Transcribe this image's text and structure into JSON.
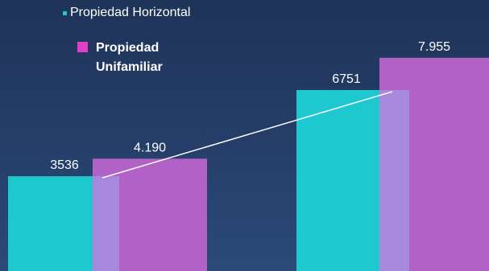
{
  "colors": {
    "series1": "#1ec8cf",
    "series2": "#b062c6",
    "overlap": "#a888dc",
    "line": "#ffffff"
  },
  "legend": {
    "items": [
      {
        "label": "Propiedad Horizontal",
        "color": "#1ec8cf"
      },
      {
        "label": "Propiedad Unifamiliar",
        "color": "#e040c8"
      }
    ]
  },
  "chart_data": {
    "type": "bar",
    "categories": [
      "",
      ""
    ],
    "series": [
      {
        "name": "Propiedad Horizontal",
        "values": [
          3536,
          6751
        ],
        "labels": [
          "3536",
          "6751"
        ]
      },
      {
        "name": "Propiedad Unifamiliar",
        "values": [
          4190,
          7955
        ],
        "labels": [
          "4.190",
          "7.955"
        ]
      }
    ],
    "ylim": [
      0,
      9000
    ],
    "grid": false,
    "legend_position": "top-left",
    "trend_line": {
      "from": 3536,
      "to": 6751
    }
  }
}
